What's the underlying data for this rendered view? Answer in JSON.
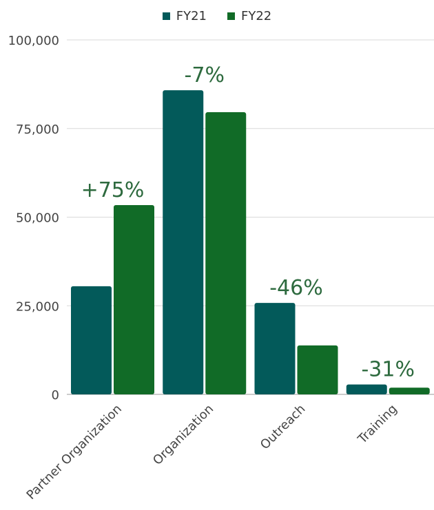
{
  "chart_data": {
    "type": "bar",
    "categories": [
      "Partner Organization",
      "Organization",
      "Outreach",
      "Training"
    ],
    "series": [
      {
        "name": "FY21",
        "color": "#035a5a",
        "values": [
          30500,
          85800,
          25800,
          2800
        ]
      },
      {
        "name": "FY22",
        "color": "#116b27",
        "values": [
          53400,
          79600,
          13800,
          1900
        ]
      }
    ],
    "annotations": [
      "+75%",
      "-7%",
      "-46%",
      "-31%"
    ],
    "yticks": [
      "0",
      "25,000",
      "50,000",
      "75,000",
      "100,000"
    ],
    "ylim": [
      0,
      100000
    ],
    "grid": true,
    "legend_position": "top-center"
  }
}
